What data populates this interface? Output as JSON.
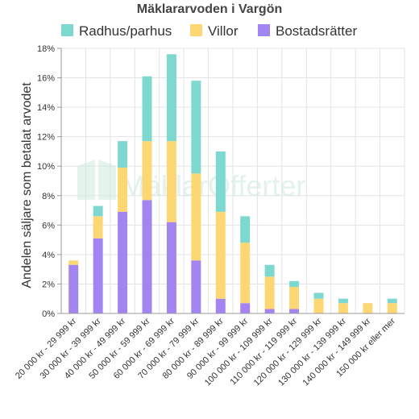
{
  "chart_data": {
    "type": "bar",
    "stacked": true,
    "title": "Mäklararvoden i Vargön",
    "ylabel": "Andelen säljare som betalat arvodet",
    "xlabel": "",
    "ylim": [
      0,
      18
    ],
    "yticks": [
      0,
      2,
      4,
      6,
      8,
      10,
      12,
      14,
      16,
      18
    ],
    "ytick_labels": [
      "0%",
      "2%",
      "4%",
      "6%",
      "8%",
      "10%",
      "12%",
      "14%",
      "16%",
      "18%"
    ],
    "grid": true,
    "legend_position": "top",
    "watermark": "MäklarOfferter",
    "categories": [
      "20 000 kr - 29 999 kr",
      "30 000 kr - 39 999 kr",
      "40 000 kr - 49 999 kr",
      "50 000 kr - 59 999 kr",
      "60 000 kr - 69 999 kr",
      "70 000 kr - 79 999 kr",
      "80 000 kr - 89 999 kr",
      "90 000 kr - 99 999 kr",
      "100 000 kr - 109 999 kr",
      "110 000 kr - 119 999 kr",
      "120 000 kr - 129 999 kr",
      "130 000 kr - 139 999 kr",
      "140 000 kr - 149 999 kr",
      "150 000 kr eller mer"
    ],
    "series": [
      {
        "name": "Bostadsrätter",
        "color": "#a385f2",
        "values": [
          3.3,
          5.1,
          6.9,
          7.7,
          6.2,
          3.6,
          1.0,
          0.7,
          0.3,
          0.3,
          0.0,
          0.0,
          0.0,
          0.0
        ]
      },
      {
        "name": "Villor",
        "color": "#fdd774",
        "values": [
          0.3,
          1.5,
          3.0,
          4.0,
          5.5,
          5.9,
          5.9,
          4.1,
          2.2,
          1.5,
          1.0,
          0.7,
          0.7,
          0.7
        ]
      },
      {
        "name": "Radhus/parhus",
        "color": "#7dd9cf",
        "values": [
          0.0,
          0.7,
          1.8,
          4.4,
          5.9,
          6.3,
          4.1,
          1.8,
          0.8,
          0.4,
          0.4,
          0.3,
          0.0,
          0.3
        ]
      }
    ],
    "legend_order": [
      "Radhus/parhus",
      "Villor",
      "Bostadsrätter"
    ]
  }
}
